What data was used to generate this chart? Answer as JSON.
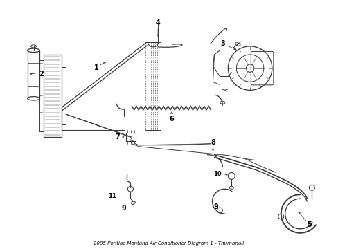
{
  "title": "2005 Pontiac Montana Air Conditioner Diagram 1 - Thumbnail",
  "bg_color": "#ffffff",
  "line_color": "#3a3a3a",
  "text_color": "#000000",
  "figsize": [
    4.89,
    3.6
  ],
  "dpi": 100,
  "label_fs": 7,
  "note_fs": 5
}
